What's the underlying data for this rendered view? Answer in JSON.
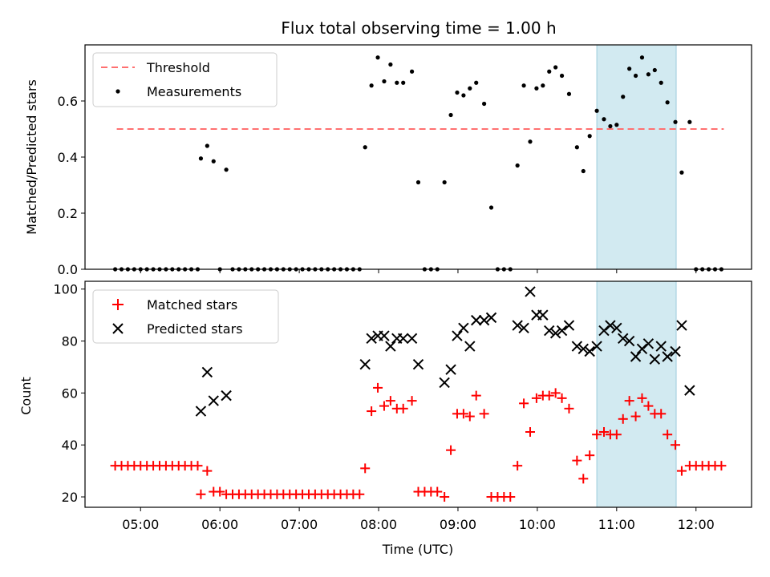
{
  "chart_data": {
    "type": "scatter",
    "title": "Flux total observing time = 1.00 h",
    "xlabel": "Time (UTC)",
    "x_ticks": [
      "05:00",
      "06:00",
      "07:00",
      "08:00",
      "09:00",
      "10:00",
      "11:00",
      "12:00"
    ],
    "x_range_hours": [
      4.3,
      12.7
    ],
    "highlight_span_hours": [
      10.75,
      11.75
    ],
    "highlight_color": "#add8e6",
    "panels": [
      {
        "id": "ratio",
        "ylabel": "Matched/Predicted stars",
        "ylim": [
          0.0,
          0.8
        ],
        "y_ticks": [
          "0.0",
          "0.2",
          "0.4",
          "0.6"
        ],
        "legend": [
          {
            "label": "Threshold",
            "style": "dashed-line",
            "color": "#ff7070"
          },
          {
            "label": "Measurements",
            "style": "dot",
            "color": "#000000"
          }
        ],
        "threshold": {
          "label": "Threshold",
          "value": 0.5,
          "x_start": 4.7,
          "x_end": 12.35,
          "color": "#ff7070"
        },
        "series": [
          {
            "name": "Measurements",
            "color": "#000000",
            "x": [
              4.68,
              4.76,
              4.84,
              4.92,
              5.0,
              5.08,
              5.16,
              5.24,
              5.32,
              5.4,
              5.48,
              5.56,
              5.64,
              5.72,
              5.76,
              5.84,
              5.92,
              6.0,
              6.08,
              6.16,
              6.24,
              6.32,
              6.4,
              6.48,
              6.56,
              6.64,
              6.72,
              6.8,
              6.88,
              6.96,
              7.04,
              7.12,
              7.2,
              7.28,
              7.36,
              7.44,
              7.52,
              7.6,
              7.68,
              7.76,
              7.83,
              7.91,
              7.99,
              8.07,
              8.15,
              8.23,
              8.31,
              8.42,
              8.5,
              8.58,
              8.66,
              8.74,
              8.83,
              8.91,
              8.99,
              9.07,
              9.15,
              9.23,
              9.33,
              9.42,
              9.5,
              9.58,
              9.66,
              9.75,
              9.83,
              9.91,
              9.99,
              10.07,
              10.15,
              10.23,
              10.31,
              10.4,
              10.5,
              10.58,
              10.66,
              10.75,
              10.84,
              10.92,
              11.0,
              11.08,
              11.16,
              11.24,
              11.32,
              11.4,
              11.48,
              11.56,
              11.64,
              11.74,
              11.82,
              11.92,
              12.0,
              12.08,
              12.16,
              12.24,
              12.32
            ],
            "y": [
              0.0,
              0.0,
              0.0,
              0.0,
              0.0,
              0.0,
              0.0,
              0.0,
              0.0,
              0.0,
              0.0,
              0.0,
              0.0,
              0.0,
              0.395,
              0.44,
              0.385,
              0.0,
              0.355,
              0.0,
              0.0,
              0.0,
              0.0,
              0.0,
              0.0,
              0.0,
              0.0,
              0.0,
              0.0,
              0.0,
              0.0,
              0.0,
              0.0,
              0.0,
              0.0,
              0.0,
              0.0,
              0.0,
              0.0,
              0.0,
              0.435,
              0.655,
              0.755,
              0.67,
              0.73,
              0.665,
              0.665,
              0.705,
              0.31,
              0.0,
              0.0,
              0.0,
              0.31,
              0.55,
              0.63,
              0.62,
              0.645,
              0.665,
              0.59,
              0.22,
              0.0,
              0.0,
              0.0,
              0.37,
              0.655,
              0.455,
              0.645,
              0.655,
              0.705,
              0.72,
              0.69,
              0.625,
              0.435,
              0.35,
              0.475,
              0.565,
              0.535,
              0.51,
              0.515,
              0.615,
              0.715,
              0.69,
              0.755,
              0.695,
              0.71,
              0.665,
              0.595,
              0.525,
              0.345,
              0.525,
              0.0,
              0.0,
              0.0,
              0.0,
              0.0
            ]
          }
        ]
      },
      {
        "id": "counts",
        "ylabel": "Count",
        "ylim": [
          16,
          103
        ],
        "y_ticks": [
          "20",
          "40",
          "60",
          "80",
          "100"
        ],
        "legend": [
          {
            "label": "Matched stars",
            "style": "plus",
            "color": "#ff0000"
          },
          {
            "label": "Predicted stars",
            "style": "x",
            "color": "#000000"
          }
        ],
        "series": [
          {
            "name": "Matched stars",
            "marker": "plus",
            "color": "#ff0000",
            "x": [
              4.68,
              4.76,
              4.84,
              4.92,
              5.0,
              5.08,
              5.16,
              5.24,
              5.32,
              5.4,
              5.48,
              5.56,
              5.64,
              5.72,
              5.76,
              5.84,
              5.92,
              6.0,
              6.08,
              6.16,
              6.24,
              6.32,
              6.4,
              6.48,
              6.56,
              6.64,
              6.72,
              6.8,
              6.88,
              6.96,
              7.04,
              7.12,
              7.2,
              7.28,
              7.36,
              7.44,
              7.52,
              7.6,
              7.68,
              7.76,
              7.83,
              7.91,
              7.99,
              8.07,
              8.15,
              8.23,
              8.31,
              8.42,
              8.5,
              8.58,
              8.66,
              8.74,
              8.83,
              8.91,
              8.99,
              9.07,
              9.15,
              9.23,
              9.33,
              9.42,
              9.5,
              9.58,
              9.66,
              9.75,
              9.83,
              9.91,
              9.99,
              10.07,
              10.15,
              10.23,
              10.31,
              10.4,
              10.5,
              10.58,
              10.66,
              10.75,
              10.84,
              10.92,
              11.0,
              11.08,
              11.16,
              11.24,
              11.32,
              11.4,
              11.48,
              11.56,
              11.64,
              11.74,
              11.82,
              11.92,
              12.0,
              12.08,
              12.16,
              12.24,
              12.32
            ],
            "y": [
              32,
              32,
              32,
              32,
              32,
              32,
              32,
              32,
              32,
              32,
              32,
              32,
              32,
              32,
              21,
              30,
              22,
              22,
              21,
              21,
              21,
              21,
              21,
              21,
              21,
              21,
              21,
              21,
              21,
              21,
              21,
              21,
              21,
              21,
              21,
              21,
              21,
              21,
              21,
              21,
              31,
              53,
              62,
              55,
              57,
              54,
              54,
              57,
              22,
              22,
              22,
              22,
              20,
              38,
              52,
              52,
              51,
              59,
              52,
              20,
              20,
              20,
              20,
              32,
              56,
              45,
              58,
              59,
              59,
              60,
              58,
              54,
              34,
              27,
              36,
              44,
              45,
              44,
              44,
              50,
              57,
              51,
              58,
              55,
              52,
              52,
              44,
              40,
              30,
              32,
              32,
              32,
              32,
              32,
              32
            ]
          },
          {
            "name": "Predicted stars",
            "marker": "x",
            "color": "#000000",
            "x": [
              5.76,
              5.84,
              5.92,
              6.08,
              7.83,
              7.91,
              7.99,
              8.07,
              8.15,
              8.23,
              8.31,
              8.42,
              8.5,
              8.83,
              8.91,
              8.99,
              9.07,
              9.15,
              9.23,
              9.33,
              9.42,
              9.75,
              9.83,
              9.91,
              9.99,
              10.07,
              10.15,
              10.23,
              10.31,
              10.4,
              10.5,
              10.58,
              10.66,
              10.75,
              10.84,
              10.92,
              11.0,
              11.08,
              11.16,
              11.24,
              11.32,
              11.4,
              11.48,
              11.56,
              11.64,
              11.74,
              11.82,
              11.92
            ],
            "y": [
              53,
              68,
              57,
              59,
              71,
              81,
              82,
              82,
              78,
              81,
              81,
              81,
              71,
              64,
              69,
              82,
              85,
              78,
              88,
              88,
              89,
              86,
              85,
              99,
              90,
              90,
              84,
              83,
              84,
              86,
              78,
              77,
              76,
              78,
              84,
              86,
              85,
              81,
              80,
              74,
              77,
              79,
              73,
              78,
              74,
              76,
              86,
              61
            ]
          }
        ]
      }
    ]
  }
}
